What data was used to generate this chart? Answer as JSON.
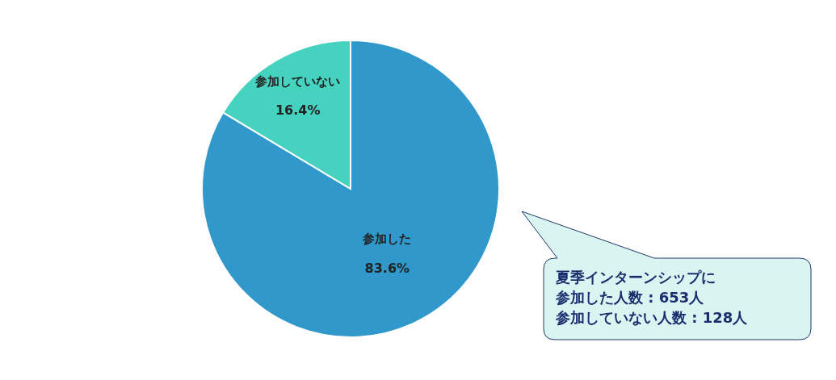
{
  "chart_data": {
    "type": "pie",
    "categories": [
      "参加した",
      "参加していない"
    ],
    "values": [
      83.6,
      16.4
    ],
    "colors": [
      "#3098cb",
      "#45d3c0"
    ],
    "value_labels": [
      "83.6%",
      "16.4%"
    ],
    "legend": false,
    "annotations": [
      "夏季インターンシップに",
      "参加した人数 : 653人",
      "参加していない人数 : 128人"
    ]
  }
}
